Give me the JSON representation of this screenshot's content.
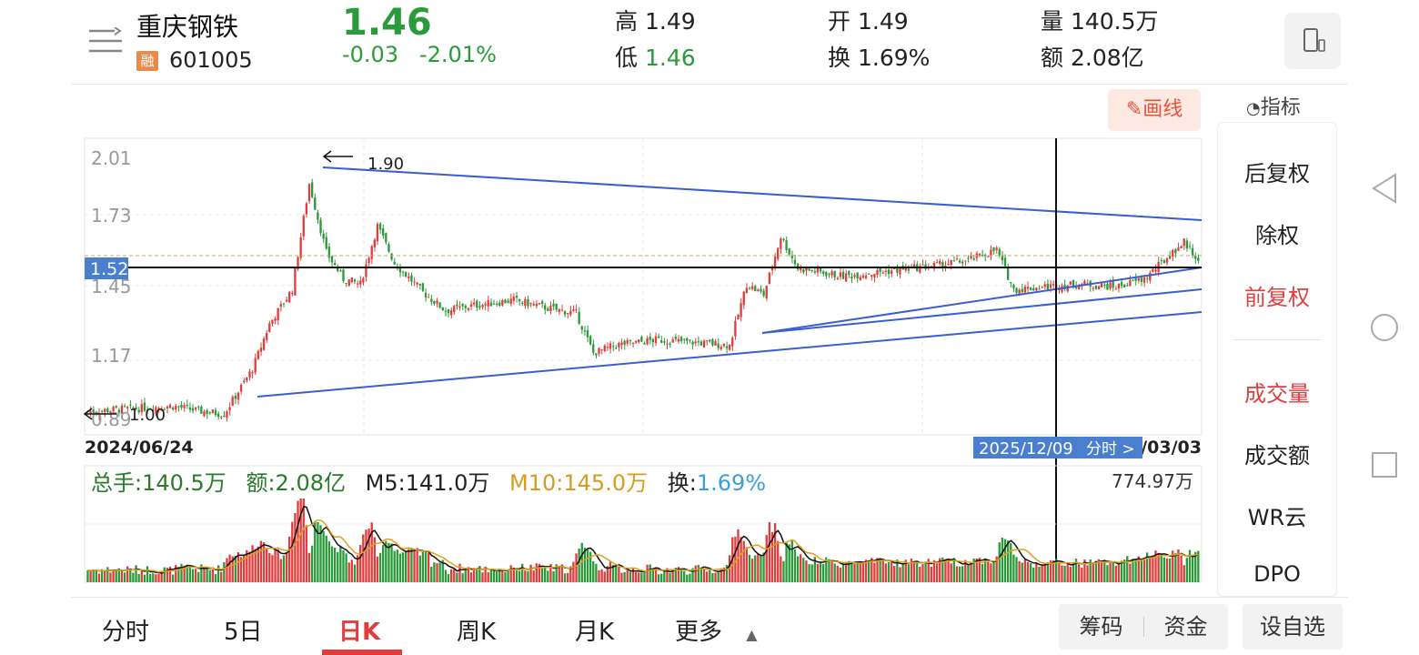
{
  "header": {
    "stock_name": "重庆钢铁",
    "badge": "融",
    "code": "601005",
    "price": "1.46",
    "change": "-0.03",
    "change_pct": "-2.01%",
    "high_label": "高",
    "high": "1.49",
    "low_label": "低",
    "low": "1.46",
    "open_label": "开",
    "open": "1.49",
    "turnover_label": "换",
    "turnover": "1.69%",
    "volume_label": "量",
    "volume": "140.5万",
    "amount_label": "额",
    "amount": "2.08亿",
    "device_icon": "phone-rotate-icon"
  },
  "toolbar": {
    "draw_label": "画线",
    "indicator_label": "指标"
  },
  "chart": {
    "y_ticks": [
      "2.01",
      "1.73",
      "1.45",
      "1.17",
      "0.89"
    ],
    "cursor_price": "1.52",
    "annot_high": "1.90",
    "annot_low": "1.00",
    "date_start": "2024/06/24",
    "date_end": "/03/03",
    "cursor_date": "2025/12/09",
    "fenshi_hint": "分时 >"
  },
  "volume": {
    "total_label": "总手:",
    "total": "140.5万",
    "amount_label": "额:",
    "amount": "2.08亿",
    "m5_label": "M5:",
    "m5": "141.0万",
    "m10_label": "M10:",
    "m10": "145.0万",
    "turnover_label": "换:",
    "turnover": "1.69%",
    "max": "774.97万"
  },
  "side_menu": [
    {
      "label": "后复权",
      "active": false
    },
    {
      "label": "除权",
      "active": false
    },
    {
      "label": "前复权",
      "active": true
    },
    {
      "label": "成交量",
      "active": true
    },
    {
      "label": "成交额",
      "active": false
    },
    {
      "label": "WR云",
      "active": false
    },
    {
      "label": "DPO",
      "active": false
    }
  ],
  "tabs": [
    {
      "label": "分时",
      "active": false
    },
    {
      "label": "5日",
      "active": false
    },
    {
      "label": "日K",
      "active": true
    },
    {
      "label": "周K",
      "active": false
    },
    {
      "label": "月K",
      "active": false
    },
    {
      "label": "更多",
      "active": false
    }
  ],
  "bottom_buttons": {
    "chips": "筹码",
    "funds": "资金",
    "watchlist": "设自选"
  },
  "colors": {
    "up": "#e03d3d",
    "down": "#2a9a3a",
    "trend": "#3a5fd0",
    "accent": "#e8533b",
    "m10": "#e0a020"
  },
  "chart_data": {
    "type": "candlestick",
    "y_range": [
      0.89,
      2.01
    ],
    "marked_high": 1.9,
    "marked_low": 1.0,
    "cursor_price": 1.52,
    "cursor_date": "2025/12/09",
    "start_date": "2024/06/24"
  }
}
